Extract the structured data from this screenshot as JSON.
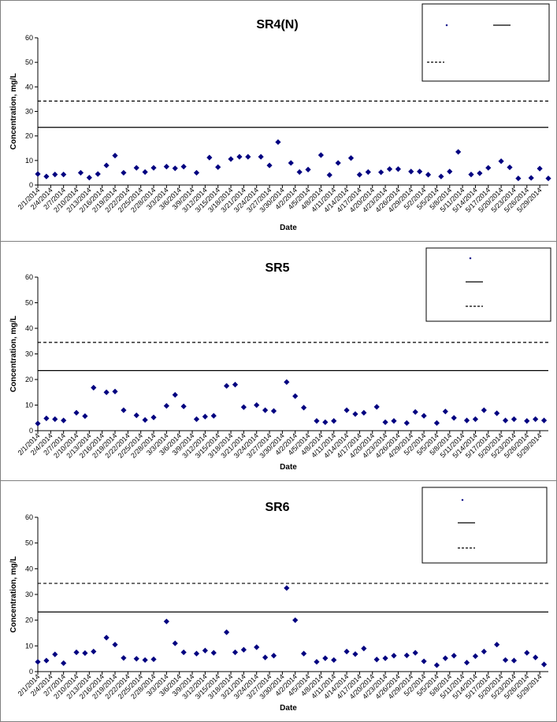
{
  "colors": {
    "marker": "#000080",
    "axis": "#000000",
    "frame": "#808080"
  },
  "chart_data": [
    {
      "type": "scatter",
      "title": "SR4(N)",
      "xlabel": "Date",
      "ylabel": "Concentration, mg/L",
      "ylim": [
        0,
        60
      ],
      "yticks": [
        0,
        10,
        20,
        30,
        40,
        50,
        60
      ],
      "grid": false,
      "legend_position": "top-right",
      "legend_entries": [
        "",
        "",
        ""
      ],
      "x_tick_labels": [
        "2/1/2014",
        "2/4/2014",
        "2/7/2014",
        "2/10/2014",
        "2/13/2014",
        "2/16/2014",
        "2/19/2014",
        "2/22/2014",
        "2/25/2014",
        "2/28/2014",
        "3/3/2014",
        "3/6/2014",
        "3/9/2014",
        "3/12/2014",
        "3/15/2014",
        "3/18/2014",
        "3/21/2014",
        "3/24/2014",
        "3/27/2014",
        "3/30/2014",
        "4/2/2014",
        "4/5/2014",
        "4/8/2014",
        "4/11/2014",
        "4/14/2014",
        "4/17/2014",
        "4/20/2014",
        "4/23/2014",
        "4/26/2014",
        "4/29/2014",
        "5/2/2014",
        "5/5/2014",
        "5/8/2014",
        "5/11/2014",
        "5/14/2014",
        "5/17/2014",
        "5/20/2014",
        "5/23/2014",
        "5/26/2014",
        "5/29/2014"
      ],
      "reference_lines": [
        {
          "style": "solid",
          "value": 23.5
        },
        {
          "style": "dashed",
          "value": 34.2
        }
      ],
      "x": [
        "2/1/2014",
        "2/3/2014",
        "2/5/2014",
        "2/7/2014",
        "2/11/2014",
        "2/13/2014",
        "2/15/2014",
        "2/17/2014",
        "2/19/2014",
        "2/21/2014",
        "2/24/2014",
        "2/26/2014",
        "2/28/2014",
        "3/3/2014",
        "3/5/2014",
        "3/7/2014",
        "3/10/2014",
        "3/13/2014",
        "3/15/2014",
        "3/18/2014",
        "3/20/2014",
        "3/22/2014",
        "3/25/2014",
        "3/27/2014",
        "3/29/2014",
        "4/1/2014",
        "4/3/2014",
        "4/5/2014",
        "4/8/2014",
        "4/10/2014",
        "4/12/2014",
        "4/15/2014",
        "4/17/2014",
        "4/19/2014",
        "4/22/2014",
        "4/24/2014",
        "4/26/2014",
        "4/29/2014",
        "5/1/2014",
        "5/3/2014",
        "5/6/2014",
        "5/8/2014",
        "5/10/2014",
        "5/13/2014",
        "5/15/2014",
        "5/17/2014",
        "5/20/2014",
        "5/22/2014",
        "5/24/2014",
        "5/27/2014",
        "5/29/2014",
        "5/31/2014"
      ],
      "y": [
        4.5,
        3.5,
        4.3,
        4.3,
        5,
        3,
        4.5,
        8,
        12,
        5,
        7,
        5.3,
        7,
        7.5,
        6.8,
        7.5,
        5,
        11.2,
        7.3,
        10.6,
        11.5,
        11.5,
        11.5,
        8,
        17.5,
        9,
        5.3,
        6.3,
        12.2,
        4.1,
        9,
        11,
        4.2,
        5.3,
        5.2,
        6.5,
        6.5,
        5.5,
        5.5,
        4.2,
        3.5,
        5.5,
        13.5,
        4.3,
        4.8,
        7,
        9.7,
        7.2,
        2.7,
        2.9,
        6.7,
        2.7
      ]
    },
    {
      "type": "scatter",
      "title": "SR5",
      "xlabel": "Date",
      "ylabel": "Concentration, mg/L",
      "ylim": [
        0,
        60
      ],
      "yticks": [
        0,
        10,
        20,
        30,
        40,
        50,
        60
      ],
      "grid": false,
      "legend_position": "top-right",
      "legend_entries": [
        "",
        "",
        ""
      ],
      "x_tick_labels": [
        "2/1/2014",
        "2/4/2014",
        "2/7/2014",
        "2/10/2014",
        "2/13/2014",
        "2/16/2014",
        "2/19/2014",
        "2/22/2014",
        "2/25/2014",
        "2/28/2014",
        "3/3/2014",
        "3/6/2014",
        "3/9/2014",
        "3/12/2014",
        "3/15/2014",
        "3/18/2014",
        "3/21/2014",
        "3/24/2014",
        "3/27/2014",
        "3/30/2014",
        "4/2/2014",
        "4/5/2014",
        "4/8/2014",
        "4/11/2014",
        "4/14/2014",
        "4/17/2014",
        "4/20/2014",
        "4/23/2014",
        "4/26/2014",
        "4/29/2014",
        "5/2/2014",
        "5/5/2014",
        "5/8/2014",
        "5/11/2014",
        "5/14/2014",
        "5/17/2014",
        "5/20/2014",
        "5/23/2014",
        "5/26/2014",
        "5/29/2014"
      ],
      "reference_lines": [
        {
          "style": "solid",
          "value": 23.5
        },
        {
          "style": "dashed",
          "value": 34.5
        }
      ],
      "x": [
        "2/1/2014",
        "2/3/2014",
        "2/5/2014",
        "2/7/2014",
        "2/10/2014",
        "2/12/2014",
        "2/14/2014",
        "2/17/2014",
        "2/19/2014",
        "2/21/2014",
        "2/24/2014",
        "2/26/2014",
        "2/28/2014",
        "3/3/2014",
        "3/5/2014",
        "3/7/2014",
        "3/10/2014",
        "3/12/2014",
        "3/14/2014",
        "3/17/2014",
        "3/19/2014",
        "3/21/2014",
        "3/24/2014",
        "3/26/2014",
        "3/28/2014",
        "3/31/2014",
        "4/2/2014",
        "4/4/2014",
        "4/7/2014",
        "4/9/2014",
        "4/11/2014",
        "4/14/2014",
        "4/16/2014",
        "4/18/2014",
        "4/21/2014",
        "4/23/2014",
        "4/25/2014",
        "4/28/2014",
        "4/30/2014",
        "5/2/2014",
        "5/5/2014",
        "5/7/2014",
        "5/9/2014",
        "5/12/2014",
        "5/14/2014",
        "5/16/2014",
        "5/19/2014",
        "5/21/2014",
        "5/23/2014",
        "5/26/2014",
        "5/28/2014",
        "5/30/2014"
      ],
      "y": [
        2.8,
        4.8,
        4.5,
        4,
        7,
        5.7,
        16.8,
        15,
        15.3,
        8,
        6,
        4.2,
        5.2,
        9.7,
        14,
        9.5,
        4.5,
        5.5,
        5.8,
        17.5,
        18,
        9.2,
        10,
        8,
        7.7,
        19,
        13.5,
        9,
        3.8,
        3.3,
        3.8,
        8,
        6.5,
        7,
        9.3,
        3.3,
        3.8,
        3,
        7.3,
        5.8,
        3,
        7.5,
        5,
        4,
        4.5,
        8,
        6.8,
        4,
        4.5,
        3.8,
        4.5,
        4
      ]
    },
    {
      "type": "scatter",
      "title": "SR6",
      "xlabel": "Date",
      "ylabel": "Concentration, mg/L",
      "ylim": [
        0,
        60
      ],
      "yticks": [
        0,
        10,
        20,
        30,
        40,
        50,
        60
      ],
      "grid": false,
      "legend_position": "top-right",
      "legend_entries": [
        "",
        "",
        ""
      ],
      "x_tick_labels": [
        "2/1/2014",
        "2/4/2014",
        "2/7/2014",
        "2/10/2014",
        "2/13/2014",
        "2/16/2014",
        "2/19/2014",
        "2/22/2014",
        "2/25/2014",
        "2/28/2014",
        "3/3/2014",
        "3/6/2014",
        "3/9/2014",
        "3/12/2014",
        "3/15/2014",
        "3/18/2014",
        "3/21/2014",
        "3/24/2014",
        "3/27/2014",
        "3/30/2014",
        "4/2/2014",
        "4/5/2014",
        "4/8/2014",
        "4/11/2014",
        "4/14/2014",
        "4/17/2014",
        "4/20/2014",
        "4/23/2014",
        "4/26/2014",
        "4/29/2014",
        "5/2/2014",
        "5/5/2014",
        "5/8/2014",
        "5/11/2014",
        "5/14/2014",
        "5/17/2014",
        "5/20/2014",
        "5/23/2014",
        "5/26/2014",
        "5/29/2014"
      ],
      "reference_lines": [
        {
          "style": "solid",
          "value": 23.2
        },
        {
          "style": "dashed",
          "value": 34.3
        }
      ],
      "x": [
        "2/1/2014",
        "2/3/2014",
        "2/5/2014",
        "2/7/2014",
        "2/10/2014",
        "2/12/2014",
        "2/14/2014",
        "2/17/2014",
        "2/19/2014",
        "2/21/2014",
        "2/24/2014",
        "2/26/2014",
        "2/28/2014",
        "3/3/2014",
        "3/5/2014",
        "3/7/2014",
        "3/10/2014",
        "3/12/2014",
        "3/14/2014",
        "3/17/2014",
        "3/19/2014",
        "3/21/2014",
        "3/24/2014",
        "3/26/2014",
        "3/28/2014",
        "3/31/2014",
        "4/2/2014",
        "4/4/2014",
        "4/7/2014",
        "4/9/2014",
        "4/11/2014",
        "4/14/2014",
        "4/16/2014",
        "4/18/2014",
        "4/21/2014",
        "4/23/2014",
        "4/25/2014",
        "4/28/2014",
        "4/30/2014",
        "5/2/2014",
        "5/5/2014",
        "5/7/2014",
        "5/9/2014",
        "5/12/2014",
        "5/14/2014",
        "5/16/2014",
        "5/19/2014",
        "5/21/2014",
        "5/23/2014",
        "5/26/2014",
        "5/28/2014",
        "5/30/2014"
      ],
      "y": [
        3.8,
        4.3,
        6.7,
        3.3,
        7.5,
        7.2,
        7.8,
        13.2,
        10.5,
        5.3,
        5,
        4.5,
        4.8,
        19.5,
        11,
        7.5,
        7,
        8.2,
        7.3,
        15.3,
        7.5,
        8.5,
        9.5,
        5.5,
        6.2,
        32.5,
        20,
        7,
        3.8,
        5.2,
        4.5,
        7.8,
        6.8,
        9,
        4.7,
        5.2,
        6.2,
        6.3,
        7.3,
        4,
        2.5,
        5.2,
        6.2,
        3.5,
        6,
        7.8,
        10.5,
        4.5,
        4.3,
        7.3,
        5.5,
        2.8
      ]
    }
  ]
}
